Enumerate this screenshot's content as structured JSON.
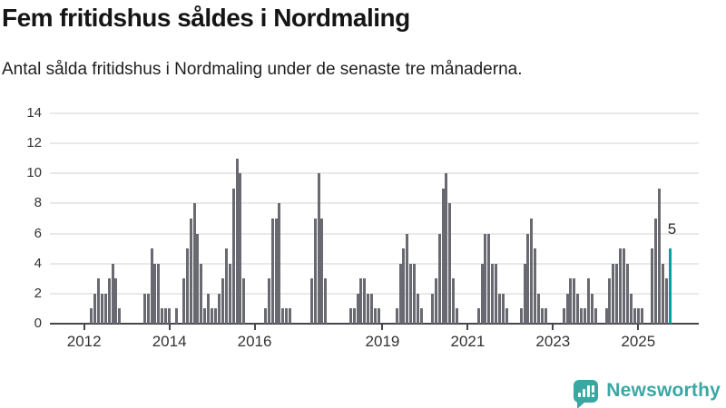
{
  "header": {
    "title": "Fem fritidshus såldes i Nordmaling",
    "subtitle": "Antal sålda fritidshus i Nordmaling under de senaste tre månaderna."
  },
  "chart_data": {
    "type": "bar",
    "title": "Fem fritidshus såldes i Nordmaling",
    "subtitle": "Antal sålda fritidshus i Nordmaling under de senaste tre månaderna.",
    "frequency": "monthly",
    "x_start_month": "2012-01",
    "x_end_month": "2025-10",
    "values": [
      0,
      0,
      1,
      2,
      3,
      2,
      2,
      3,
      4,
      3,
      1,
      0,
      0,
      0,
      0,
      0,
      0,
      2,
      2,
      5,
      4,
      4,
      1,
      1,
      1,
      0,
      1,
      0,
      3,
      5,
      7,
      8,
      6,
      4,
      1,
      2,
      1,
      1,
      2,
      3,
      5,
      4,
      9,
      11,
      10,
      3,
      0,
      0,
      0,
      0,
      0,
      1,
      3,
      7,
      7,
      8,
      1,
      1,
      1,
      0,
      0,
      0,
      0,
      0,
      3,
      7,
      10,
      7,
      3,
      0,
      0,
      0,
      0,
      0,
      0,
      1,
      1,
      2,
      3,
      3,
      2,
      2,
      1,
      1,
      0,
      0,
      0,
      0,
      1,
      4,
      5,
      6,
      4,
      4,
      2,
      1,
      0,
      0,
      2,
      3,
      6,
      9,
      10,
      8,
      3,
      1,
      0,
      0,
      0,
      0,
      0,
      1,
      4,
      6,
      6,
      4,
      4,
      2,
      2,
      1,
      0,
      0,
      0,
      1,
      4,
      6,
      7,
      5,
      2,
      1,
      1,
      0,
      0,
      0,
      0,
      1,
      2,
      3,
      3,
      2,
      1,
      1,
      3,
      2,
      1,
      0,
      0,
      1,
      3,
      4,
      4,
      5,
      5,
      4,
      2,
      1,
      1,
      1,
      0,
      0,
      5,
      7,
      9,
      4,
      3,
      5
    ],
    "highlight_last_value": 5,
    "last_value_label": "5",
    "ylim": [
      0,
      14
    ],
    "yticks": [
      0,
      2,
      4,
      6,
      8,
      10,
      12,
      14
    ],
    "xticks": [
      {
        "label": "2012",
        "month_index": 0
      },
      {
        "label": "2014",
        "month_index": 24
      },
      {
        "label": "2016",
        "month_index": 48
      },
      {
        "label": "2019",
        "month_index": 84
      },
      {
        "label": "2021",
        "month_index": 108
      },
      {
        "label": "2023",
        "month_index": 132
      },
      {
        "label": "2025",
        "month_index": 156
      }
    ],
    "grid": true,
    "legend": "none",
    "colors": {
      "bar": "#696a71",
      "highlight": "#03a2a0",
      "grid": "#e9e9e9",
      "axis": "#46464c",
      "tick_text": "#333333"
    }
  },
  "footer": {
    "brand": "Newsworthy",
    "brand_color": "#3aa7a3"
  }
}
